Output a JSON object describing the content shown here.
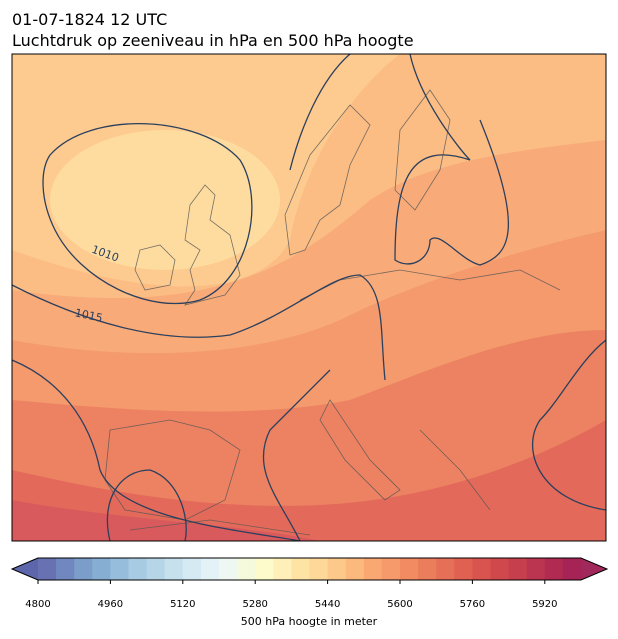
{
  "header": {
    "title": "01-07-1824 12 UTC",
    "subtitle": "Luchtdruk op zeeniveau in hPa en 500 hPa hoogte"
  },
  "map": {
    "isobar_labels": [
      1010,
      1015
    ]
  },
  "colorbar": {
    "label": "500 hPa hoogte in meter",
    "lim": [
      4800,
      6000
    ],
    "ticks": [
      4800,
      4960,
      5120,
      5280,
      5440,
      5600,
      5760,
      5920
    ],
    "under_color": "#5d66aa",
    "over_color": "#a0285a",
    "colors": [
      "#6872b3",
      "#7088bf",
      "#7a9dc9",
      "#86aed3",
      "#96bedc",
      "#a7cbe2",
      "#b6d6e8",
      "#c6e0ee",
      "#d5eaf3",
      "#e3f2f6",
      "#eef7f2",
      "#f6fadd",
      "#fdfbcb",
      "#fef0b8",
      "#fee4a4",
      "#fed898",
      "#fdc98a",
      "#fbb97d",
      "#f9a872",
      "#f69a6b",
      "#f28b62",
      "#ec7d5c",
      "#e66f57",
      "#e06152",
      "#d9544f",
      "#d0484c",
      "#c53f4d",
      "#bb3450",
      "#b02a52",
      "#a52455"
    ]
  }
}
